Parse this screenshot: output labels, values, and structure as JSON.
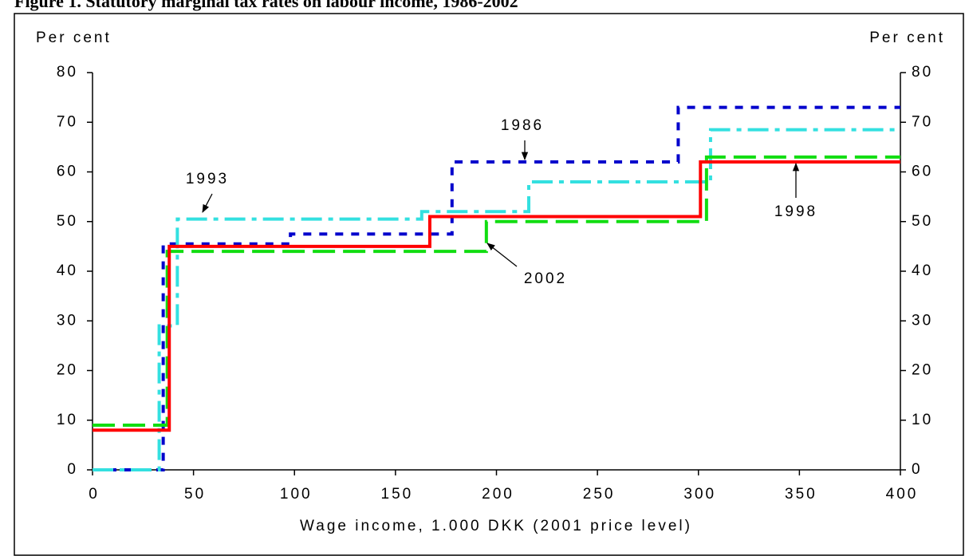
{
  "chart_data": {
    "type": "line",
    "title": "Figure 1. Statutory marginal tax rates on labour income, 1986-2002",
    "xlabel": "Wage income, 1.000 DKK (2001 price level)",
    "ylabel": "Per cent",
    "y2label": "Per cent",
    "xlim": [
      0,
      400
    ],
    "xticks": [
      0,
      50,
      100,
      150,
      200,
      250,
      300,
      350,
      400
    ],
    "ylim": [
      0,
      80
    ],
    "yticks": [
      0,
      10,
      20,
      30,
      40,
      50,
      60,
      70,
      80
    ],
    "series": [
      {
        "name": "1998",
        "color": "#ff0000",
        "style": "solid",
        "x": [
          0,
          38,
          38,
          167,
          167,
          301,
          301,
          400
        ],
        "values": [
          8,
          8,
          45,
          45,
          51,
          51,
          62,
          62
        ]
      },
      {
        "name": "2002",
        "color": "#11dd11",
        "style": "longdash",
        "x": [
          0,
          37,
          37,
          195,
          195,
          304,
          304,
          400
        ],
        "values": [
          9,
          9,
          44,
          44,
          50,
          50,
          63,
          63
        ]
      },
      {
        "name": "1986",
        "color": "#0000cc",
        "style": "shortdash",
        "x": [
          0,
          35,
          35,
          98,
          98,
          178,
          178,
          290,
          290,
          400
        ],
        "values": [
          0,
          0,
          45.5,
          45.5,
          47.5,
          47.5,
          62,
          62,
          73,
          73
        ]
      },
      {
        "name": "1993",
        "color": "#33e0e0",
        "style": "dashdot",
        "x": [
          0,
          33,
          33,
          42,
          42,
          163,
          163,
          216,
          216,
          306,
          306,
          400
        ],
        "values": [
          0,
          0,
          29,
          29,
          50.5,
          50.5,
          52,
          52,
          58,
          58,
          68.5,
          68.5
        ]
      }
    ]
  }
}
